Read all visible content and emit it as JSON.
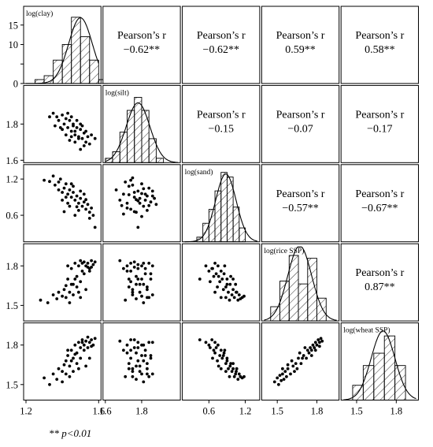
{
  "chart_data": {
    "type": "scatter",
    "variables": [
      "log(clay)",
      "log(silt)",
      "log(sand)",
      "log(rice SSP)",
      "log(wheat SSP)"
    ],
    "correlation_label": "Pearson’s r",
    "correlations": [
      {
        "row": 0,
        "col": 1,
        "value": "−0.62**"
      },
      {
        "row": 0,
        "col": 2,
        "value": "−0.62**"
      },
      {
        "row": 0,
        "col": 3,
        "value": "0.59**"
      },
      {
        "row": 0,
        "col": 4,
        "value": "0.58**"
      },
      {
        "row": 1,
        "col": 2,
        "value": "−0.15"
      },
      {
        "row": 1,
        "col": 3,
        "value": "−0.07"
      },
      {
        "row": 1,
        "col": 4,
        "value": "−0.17"
      },
      {
        "row": 2,
        "col": 3,
        "value": "−0.57**"
      },
      {
        "row": 2,
        "col": 4,
        "value": "−0.67**"
      },
      {
        "row": 3,
        "col": 4,
        "value": "0.87**"
      }
    ],
    "variable_ranges": [
      [
        1.2,
        1.6
      ],
      [
        1.6,
        2.0
      ],
      [
        0.2,
        1.4
      ],
      [
        1.4,
        1.95
      ],
      [
        1.4,
        1.95
      ]
    ],
    "row_ticks": [
      {
        "values": [
          0,
          5,
          10,
          15
        ],
        "labels": [
          "0",
          "",
          "10",
          "15"
        ]
      },
      {
        "values": [
          1.6,
          1.8
        ],
        "labels": [
          "1.6",
          "1.8"
        ]
      },
      {
        "values": [
          0.6,
          1.2
        ],
        "labels": [
          "0.6",
          "1.2"
        ]
      },
      {
        "values": [
          1.5,
          1.8
        ],
        "labels": [
          "1.5",
          "1.8"
        ]
      },
      {
        "values": [
          1.5,
          1.8
        ],
        "labels": [
          "1.5",
          "1.8"
        ]
      }
    ],
    "col_ticks": [
      {
        "values": [
          1.2,
          1.6
        ],
        "labels": [
          "1.2",
          "1.6"
        ]
      },
      {
        "values": [
          1.6,
          1.8
        ],
        "labels": [
          "1.6",
          "1.8"
        ]
      },
      {
        "values": [
          0.6,
          1.2
        ],
        "labels": [
          "0.6",
          "1.2"
        ]
      },
      {
        "values": [
          1.5,
          1.8
        ],
        "labels": [
          "1.5",
          "1.8"
        ]
      },
      {
        "values": [
          1.5,
          1.8
        ],
        "labels": [
          "1.5",
          "1.8"
        ]
      }
    ],
    "histograms": [
      {
        "var": "log(clay)",
        "bin_edges": [
          1.25,
          1.3,
          1.35,
          1.4,
          1.45,
          1.5,
          1.55,
          1.6,
          1.65
        ],
        "counts": [
          1,
          2,
          6,
          10,
          17,
          12,
          6,
          1
        ],
        "ylim": [
          0,
          19
        ],
        "normal_mean": 1.5,
        "normal_sd": 0.065
      },
      {
        "var": "log(silt)",
        "bin_edges": [
          1.6,
          1.64,
          1.68,
          1.72,
          1.76,
          1.8,
          1.84,
          1.88,
          1.92
        ],
        "counts": [
          2,
          5,
          14,
          24,
          30,
          24,
          11,
          2
        ],
        "ylim": [
          0,
          34
        ],
        "normal_mean": 1.78,
        "normal_sd": 0.065
      },
      {
        "var": "log(sand)",
        "bin_edges": [
          0.4,
          0.5,
          0.6,
          0.7,
          0.8,
          0.9,
          1.0,
          1.1,
          1.2
        ],
        "counts": [
          2,
          8,
          14,
          22,
          30,
          28,
          15,
          6
        ],
        "ylim": [
          0,
          32
        ],
        "normal_mean": 0.88,
        "normal_sd": 0.17
      },
      {
        "var": "log(rice SSP)",
        "bin_edges": [
          1.45,
          1.52,
          1.59,
          1.66,
          1.73,
          1.8,
          1.87
        ],
        "counts": [
          5,
          14,
          23,
          13,
          22,
          8
        ],
        "ylim": [
          0,
          26
        ],
        "normal_mean": 1.67,
        "normal_sd": 0.09
      },
      {
        "var": "log(wheat SSP)",
        "bin_edges": [
          1.47,
          1.55,
          1.63,
          1.71,
          1.79,
          1.87
        ],
        "counts": [
          6,
          14,
          19,
          26,
          14
        ],
        "ylim": [
          0,
          30
        ],
        "normal_mean": 1.7,
        "normal_sd": 0.09
      }
    ],
    "scatter": [
      {
        "row": 1,
        "col": 0,
        "x": [
          1.33,
          1.35,
          1.37,
          1.38,
          1.4,
          1.41,
          1.42,
          1.43,
          1.44,
          1.45,
          1.46,
          1.47,
          1.48,
          1.49,
          1.5,
          1.51,
          1.52,
          1.53,
          1.54,
          1.55,
          1.4,
          1.42,
          1.44,
          1.46,
          1.48,
          1.5,
          1.52,
          1.45,
          1.47,
          1.49,
          1.51,
          1.43,
          1.39,
          1.56,
          1.58,
          1.36,
          1.5,
          1.53,
          1.47,
          1.45
        ],
        "y": [
          1.84,
          1.86,
          1.84,
          1.82,
          1.85,
          1.8,
          1.83,
          1.78,
          1.82,
          1.76,
          1.8,
          1.74,
          1.78,
          1.73,
          1.77,
          1.72,
          1.75,
          1.7,
          1.73,
          1.69,
          1.77,
          1.74,
          1.71,
          1.79,
          1.82,
          1.8,
          1.68,
          1.84,
          1.76,
          1.72,
          1.79,
          1.86,
          1.78,
          1.74,
          1.72,
          1.79,
          1.66,
          1.76,
          1.7,
          1.73
        ]
      },
      {
        "row": 2,
        "col": 0,
        "x": [
          1.3,
          1.33,
          1.35,
          1.36,
          1.38,
          1.39,
          1.4,
          1.41,
          1.42,
          1.43,
          1.44,
          1.45,
          1.46,
          1.47,
          1.48,
          1.49,
          1.5,
          1.51,
          1.52,
          1.53,
          1.54,
          1.55,
          1.56,
          1.57,
          1.58,
          1.4,
          1.43,
          1.46,
          1.49,
          1.52,
          1.55,
          1.38,
          1.44,
          1.5,
          1.47,
          1.42,
          1.53,
          1.45,
          1.48,
          1.41
        ],
        "y": [
          1.18,
          1.16,
          1.25,
          1.1,
          1.15,
          1.2,
          0.98,
          1.05,
          1.12,
          0.95,
          1.02,
          0.9,
          0.98,
          0.85,
          0.92,
          0.8,
          0.88,
          0.75,
          0.82,
          0.7,
          0.78,
          0.65,
          0.72,
          0.6,
          0.4,
          0.85,
          0.8,
          1.08,
          0.68,
          0.95,
          0.55,
          1.02,
          0.75,
          1.0,
          0.6,
          0.9,
          0.86,
          1.12,
          0.74,
          0.66
        ]
      },
      {
        "row": 2,
        "col": 1,
        "x": [
          1.66,
          1.68,
          1.7,
          1.71,
          1.72,
          1.73,
          1.74,
          1.75,
          1.76,
          1.77,
          1.78,
          1.79,
          1.8,
          1.81,
          1.82,
          1.83,
          1.84,
          1.85,
          1.86,
          1.88,
          1.7,
          1.74,
          1.78,
          1.82,
          1.86,
          1.72,
          1.76,
          1.8,
          1.84,
          1.75,
          1.79,
          1.83,
          1.77,
          1.73,
          1.81,
          1.69,
          1.87,
          1.76,
          1.8,
          1.78
        ],
        "y": [
          1.02,
          0.85,
          0.95,
          1.15,
          0.8,
          1.08,
          0.7,
          1.22,
          0.9,
          0.65,
          1.0,
          0.88,
          1.12,
          0.75,
          0.95,
          0.68,
          1.05,
          0.82,
          0.92,
          0.78,
          0.62,
          1.18,
          0.4,
          0.85,
          1.0,
          0.72,
          0.98,
          0.58,
          0.76,
          1.1,
          0.8,
          0.92,
          0.86,
          0.94,
          1.04,
          0.76,
          0.88,
          0.66,
          0.96,
          0.84
        ]
      },
      {
        "row": 3,
        "col": 0,
        "x": [
          1.28,
          1.32,
          1.35,
          1.37,
          1.38,
          1.4,
          1.41,
          1.42,
          1.43,
          1.44,
          1.45,
          1.46,
          1.47,
          1.48,
          1.49,
          1.5,
          1.51,
          1.52,
          1.53,
          1.54,
          1.55,
          1.56,
          1.57,
          1.58,
          1.44,
          1.46,
          1.48,
          1.5,
          1.52,
          1.54,
          1.42,
          1.47,
          1.51,
          1.49,
          1.55,
          1.45,
          1.53,
          1.43,
          1.56,
          1.5
        ],
        "y": [
          1.54,
          1.52,
          1.58,
          1.55,
          1.6,
          1.57,
          1.62,
          1.65,
          1.7,
          1.6,
          1.78,
          1.66,
          1.82,
          1.72,
          1.8,
          1.84,
          1.76,
          1.83,
          1.8,
          1.82,
          1.78,
          1.84,
          1.81,
          1.83,
          1.52,
          1.58,
          1.64,
          1.68,
          1.74,
          1.79,
          1.56,
          1.7,
          1.82,
          1.6,
          1.76,
          1.66,
          1.62,
          1.8,
          1.79,
          1.56
        ]
      },
      {
        "row": 3,
        "col": 1,
        "x": [
          1.68,
          1.7,
          1.72,
          1.73,
          1.74,
          1.75,
          1.76,
          1.77,
          1.78,
          1.79,
          1.8,
          1.81,
          1.82,
          1.83,
          1.84,
          1.85,
          1.86,
          1.71,
          1.74,
          1.77,
          1.8,
          1.83,
          1.86,
          1.72,
          1.75,
          1.78,
          1.81,
          1.84,
          1.76,
          1.79,
          1.82,
          1.73,
          1.85,
          1.78,
          1.81,
          1.75,
          1.83,
          1.77,
          1.8,
          1.74
        ],
        "y": [
          1.84,
          1.78,
          1.8,
          1.7,
          1.82,
          1.6,
          1.79,
          1.55,
          1.81,
          1.66,
          1.8,
          1.52,
          1.78,
          1.62,
          1.82,
          1.74,
          1.58,
          1.54,
          1.68,
          1.72,
          1.57,
          1.64,
          1.8,
          1.76,
          1.62,
          1.7,
          1.66,
          1.56,
          1.83,
          1.6,
          1.74,
          1.64,
          1.7,
          1.78,
          1.82,
          1.58,
          1.56,
          1.66,
          1.7,
          1.76
        ]
      },
      {
        "row": 3,
        "col": 2,
        "x": [
          0.45,
          0.55,
          0.6,
          0.65,
          0.68,
          0.7,
          0.72,
          0.75,
          0.78,
          0.8,
          0.82,
          0.85,
          0.88,
          0.9,
          0.92,
          0.95,
          0.98,
          1.0,
          1.02,
          1.05,
          1.08,
          1.1,
          1.12,
          1.15,
          1.18,
          0.62,
          0.74,
          0.86,
          0.96,
          1.04,
          0.7,
          0.8,
          0.9,
          1.0,
          0.84,
          0.94,
          0.76,
          1.06,
          0.66,
          0.88
        ],
        "y": [
          1.7,
          1.8,
          1.76,
          1.78,
          1.72,
          1.82,
          1.74,
          1.8,
          1.68,
          1.76,
          1.7,
          1.74,
          1.64,
          1.7,
          1.6,
          1.66,
          1.58,
          1.62,
          1.56,
          1.6,
          1.54,
          1.58,
          1.55,
          1.56,
          1.57,
          1.68,
          1.64,
          1.8,
          1.72,
          1.66,
          1.6,
          1.56,
          1.66,
          1.7,
          1.62,
          1.54,
          1.72,
          1.6,
          1.78,
          1.56
        ]
      },
      {
        "row": 4,
        "col": 0,
        "x": [
          1.3,
          1.33,
          1.35,
          1.37,
          1.38,
          1.4,
          1.41,
          1.42,
          1.43,
          1.44,
          1.45,
          1.46,
          1.47,
          1.48,
          1.49,
          1.5,
          1.51,
          1.52,
          1.53,
          1.54,
          1.55,
          1.56,
          1.57,
          1.58,
          1.44,
          1.46,
          1.48,
          1.5,
          1.52,
          1.54,
          1.42,
          1.47,
          1.51,
          1.49,
          1.55,
          1.45,
          1.53,
          1.43,
          1.56,
          1.4
        ],
        "y": [
          1.55,
          1.5,
          1.58,
          1.54,
          1.62,
          1.6,
          1.65,
          1.68,
          1.72,
          1.64,
          1.76,
          1.7,
          1.8,
          1.74,
          1.82,
          1.78,
          1.84,
          1.8,
          1.83,
          1.86,
          1.82,
          1.84,
          1.8,
          1.85,
          1.56,
          1.6,
          1.66,
          1.7,
          1.76,
          1.78,
          1.58,
          1.73,
          1.82,
          1.62,
          1.7,
          1.68,
          1.64,
          1.76,
          1.79,
          1.52
        ]
      },
      {
        "row": 4,
        "col": 1,
        "x": [
          1.68,
          1.7,
          1.72,
          1.73,
          1.74,
          1.75,
          1.76,
          1.77,
          1.78,
          1.79,
          1.8,
          1.81,
          1.82,
          1.83,
          1.84,
          1.85,
          1.86,
          1.71,
          1.74,
          1.77,
          1.8,
          1.83,
          1.86,
          1.72,
          1.75,
          1.78,
          1.81,
          1.84,
          1.76,
          1.79,
          1.82,
          1.73,
          1.85,
          1.78,
          1.81,
          1.75,
          1.83,
          1.77,
          1.8,
          1.74
        ],
        "y": [
          1.83,
          1.76,
          1.8,
          1.66,
          1.84,
          1.6,
          1.78,
          1.54,
          1.82,
          1.64,
          1.8,
          1.52,
          1.76,
          1.62,
          1.82,
          1.7,
          1.58,
          1.56,
          1.7,
          1.74,
          1.58,
          1.66,
          1.82,
          1.74,
          1.62,
          1.68,
          1.68,
          1.56,
          1.84,
          1.6,
          1.72,
          1.62,
          1.72,
          1.78,
          1.8,
          1.56,
          1.58,
          1.64,
          1.72,
          1.76
        ]
      },
      {
        "row": 4,
        "col": 2,
        "x": [
          0.45,
          0.55,
          0.6,
          0.65,
          0.68,
          0.7,
          0.72,
          0.75,
          0.78,
          0.8,
          0.82,
          0.85,
          0.88,
          0.9,
          0.92,
          0.95,
          0.98,
          1.0,
          1.02,
          1.05,
          1.08,
          1.1,
          1.12,
          1.15,
          1.18,
          0.62,
          0.74,
          0.86,
          0.96,
          1.04,
          0.7,
          0.8,
          0.9,
          1.0,
          0.84,
          0.94,
          0.76,
          1.06,
          0.66,
          0.88
        ],
        "y": [
          1.84,
          1.82,
          1.8,
          1.84,
          1.76,
          1.82,
          1.78,
          1.8,
          1.72,
          1.76,
          1.7,
          1.74,
          1.66,
          1.7,
          1.62,
          1.64,
          1.6,
          1.62,
          1.56,
          1.6,
          1.54,
          1.58,
          1.56,
          1.55,
          1.56,
          1.78,
          1.68,
          1.76,
          1.66,
          1.58,
          1.74,
          1.62,
          1.68,
          1.66,
          1.72,
          1.56,
          1.64,
          1.62,
          1.7,
          1.6
        ]
      },
      {
        "row": 4,
        "col": 3,
        "x": [
          1.48,
          1.5,
          1.51,
          1.52,
          1.53,
          1.54,
          1.55,
          1.56,
          1.57,
          1.58,
          1.6,
          1.62,
          1.63,
          1.64,
          1.65,
          1.66,
          1.68,
          1.7,
          1.72,
          1.73,
          1.74,
          1.75,
          1.76,
          1.77,
          1.78,
          1.79,
          1.8,
          1.81,
          1.82,
          1.83,
          1.84,
          1.58,
          1.67,
          1.71,
          1.76,
          1.79,
          1.82,
          1.54,
          1.61,
          1.69
        ],
        "y": [
          1.52,
          1.55,
          1.5,
          1.57,
          1.53,
          1.58,
          1.54,
          1.6,
          1.56,
          1.62,
          1.58,
          1.64,
          1.6,
          1.66,
          1.62,
          1.7,
          1.66,
          1.72,
          1.7,
          1.76,
          1.74,
          1.78,
          1.76,
          1.8,
          1.78,
          1.82,
          1.8,
          1.84,
          1.82,
          1.85,
          1.83,
          1.65,
          1.74,
          1.78,
          1.72,
          1.76,
          1.79,
          1.62,
          1.68,
          1.7
        ]
      }
    ],
    "footnote": "** p<0.01"
  }
}
